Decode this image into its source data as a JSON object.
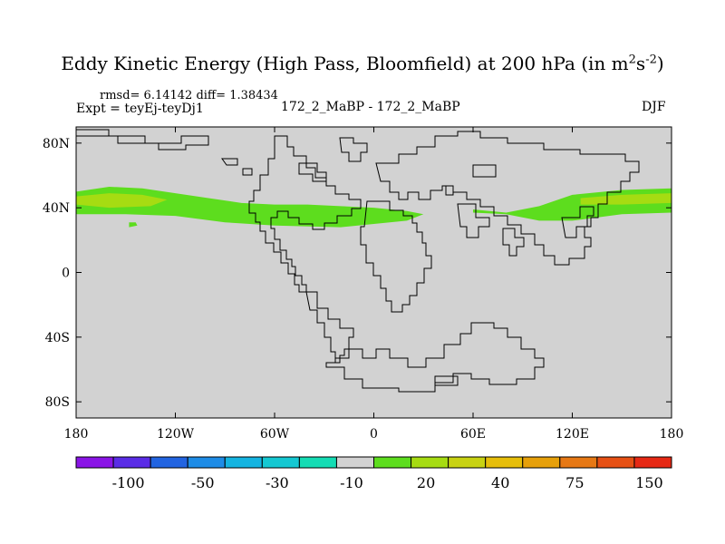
{
  "header": {
    "title_main": "Eddy Kinetic Energy (High Pass, Bloomfield) at 200 hPa (in m",
    "title_sup1": "2",
    "title_mid": "s",
    "title_sup2": "-2",
    "title_end": ")",
    "rmsd_line": "rmsd= 6.14142 diff= 1.38434",
    "expt_line": "Expt = teyEj-teyDj1",
    "case_label": "172_2_MaBP - 172_2_MaBP",
    "season": "DJF"
  },
  "chart_data": {
    "type": "heatmap",
    "title": "Eddy Kinetic Energy (High Pass, Bloomfield) at 200 hPa (in m2s-2)",
    "x_range": [
      -180,
      180
    ],
    "y_range": [
      -90,
      90
    ],
    "x_ticks": [
      {
        "value": -180,
        "label": "180"
      },
      {
        "value": -120,
        "label": "120W"
      },
      {
        "value": -60,
        "label": "60W"
      },
      {
        "value": 0,
        "label": "0"
      },
      {
        "value": 60,
        "label": "60E"
      },
      {
        "value": 120,
        "label": "120E"
      },
      {
        "value": 180,
        "label": "180"
      }
    ],
    "y_ticks": [
      {
        "value": 80,
        "label": "80N"
      },
      {
        "value": 40,
        "label": "40N"
      },
      {
        "value": 0,
        "label": "0"
      },
      {
        "value": -40,
        "label": "40S"
      },
      {
        "value": -80,
        "label": "80S"
      }
    ],
    "background_color": "#d2d2d2",
    "contour_bands": [
      {
        "name": "20 band",
        "color": "#5ddd1e",
        "points": [
          [
            -180,
            50
          ],
          [
            -160,
            53
          ],
          [
            -140,
            52
          ],
          [
            -120,
            49
          ],
          [
            -100,
            46
          ],
          [
            -80,
            43
          ],
          [
            -60,
            42
          ],
          [
            -40,
            42
          ],
          [
            -20,
            41
          ],
          [
            0,
            40
          ],
          [
            20,
            38
          ],
          [
            30,
            36
          ],
          [
            20,
            32
          ],
          [
            0,
            30
          ],
          [
            -20,
            28
          ],
          [
            -60,
            29
          ],
          [
            -90,
            31
          ],
          [
            -120,
            35
          ],
          [
            -150,
            36
          ],
          [
            -180,
            36
          ]
        ]
      },
      {
        "name": "20 band west-pacific",
        "color": "#5ddd1e",
        "points": [
          [
            60,
            39
          ],
          [
            80,
            37
          ],
          [
            100,
            41
          ],
          [
            120,
            48
          ],
          [
            150,
            51
          ],
          [
            180,
            52
          ],
          [
            180,
            37
          ],
          [
            150,
            36
          ],
          [
            120,
            32
          ],
          [
            100,
            32
          ],
          [
            80,
            36
          ],
          [
            60,
            37
          ]
        ]
      },
      {
        "name": "20 band speck",
        "color": "#5ddd1e",
        "points": [
          [
            -148,
            31
          ],
          [
            -144,
            31
          ],
          [
            -143,
            29
          ],
          [
            -148,
            28
          ]
        ]
      },
      {
        "name": "40 core atlantic",
        "color": "#a6dc12",
        "points": [
          [
            -180,
            47
          ],
          [
            -160,
            49
          ],
          [
            -140,
            48
          ],
          [
            -125,
            45
          ],
          [
            -135,
            41
          ],
          [
            -160,
            40
          ],
          [
            -180,
            42
          ]
        ]
      },
      {
        "name": "40 core pacific",
        "color": "#a6dc12",
        "points": [
          [
            125,
            46
          ],
          [
            150,
            48
          ],
          [
            180,
            49
          ],
          [
            180,
            43
          ],
          [
            150,
            42
          ],
          [
            125,
            42
          ]
        ]
      }
    ],
    "colorbar": {
      "colors": [
        "#8a14e6",
        "#5a2ce6",
        "#2264e1",
        "#1e8ce6",
        "#14b4e1",
        "#14c8d2",
        "#14dcb4",
        "#d2d2d2",
        "#5ddd1e",
        "#a6dc12",
        "#c8d212",
        "#e6be0a",
        "#e6a00a",
        "#e67814",
        "#e65014",
        "#e62814"
      ],
      "labels": [
        {
          "after_box": 2,
          "text": "-100"
        },
        {
          "after_box": 4,
          "text": "-50"
        },
        {
          "after_box": 6,
          "text": "-30"
        },
        {
          "after_box": 8,
          "text": "-10"
        },
        {
          "after_box": 10,
          "text": "20"
        },
        {
          "after_box": 12,
          "text": "40"
        },
        {
          "after_box": 14,
          "text": "75"
        },
        {
          "after_box": 16,
          "text": "150"
        }
      ]
    }
  }
}
